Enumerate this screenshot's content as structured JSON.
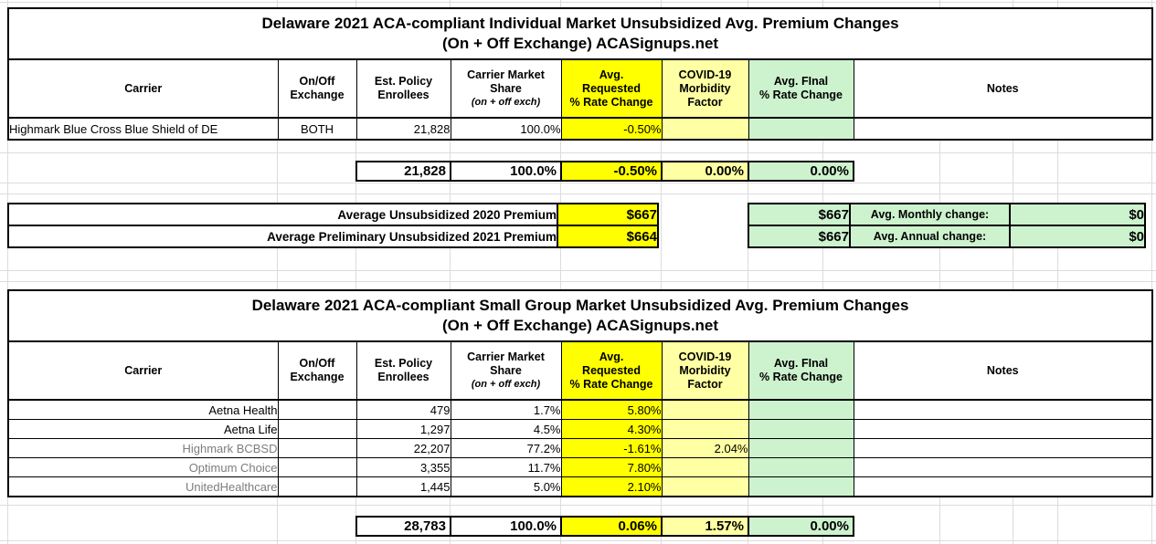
{
  "colors": {
    "requested_col_bg": "#ffff00",
    "covid_col_bg": "#ffffa3",
    "final_col_bg": "#cdf3ce",
    "gridline": "#dcdcdc",
    "muted_carrier_text": "#7d7d7d"
  },
  "columns": {
    "carrier": "Carrier",
    "exchange1": "On/Off",
    "exchange2": "Exchange",
    "enrollees1": "Est. Policy",
    "enrollees2": "Enrollees",
    "share1": "Carrier Market",
    "share2": "Share",
    "share3": "(on + off exch)",
    "requested1": "Avg.",
    "requested2": "Requested",
    "requested3": "% Rate Change",
    "covid1": "COVID-19",
    "covid2": "Morbidity",
    "covid3": "Factor",
    "final1": "Avg. FInal",
    "final2": "% Rate Change",
    "notes": "Notes"
  },
  "individual": {
    "title_line1": "Delaware 2021 ACA-compliant Individual Market Unsubsidized Avg. Premium Changes",
    "title_line2": "(On + Off Exchange) ACASignups.net",
    "rows": [
      {
        "carrier": "Highmark Blue Cross Blue Shield of DE",
        "exchange": "BOTH",
        "enrollees": "21,828",
        "share": "100.0%",
        "requested": "-0.50%",
        "covid": "",
        "final": "",
        "notes": ""
      }
    ],
    "totals": {
      "enrollees": "21,828",
      "share": "100.0%",
      "requested": "-0.50%",
      "covid": "0.00%",
      "final": "0.00%"
    }
  },
  "premium_summary": {
    "rows": [
      {
        "label": "Average Unsubsidized 2020 Premium",
        "value": "$667",
        "final_value": "$667",
        "change_label": "Avg. Monthly change:",
        "change_value": "$0"
      },
      {
        "label": "Average Preliminary Unsubsidized 2021 Premium",
        "value": "$664",
        "final_value": "$667",
        "change_label": "Avg. Annual change:",
        "change_value": "$0"
      }
    ]
  },
  "small_group": {
    "title_line1": "Delaware 2021 ACA-compliant Small Group Market Unsubsidized Avg. Premium Changes",
    "title_line2": "(On + Off Exchange) ACASignups.net",
    "rows": [
      {
        "carrier": "Aetna Health",
        "exchange": "",
        "enrollees": "479",
        "share": "1.7%",
        "requested": "5.80%",
        "covid": "",
        "final": "",
        "notes": ""
      },
      {
        "carrier": "Aetna Life",
        "exchange": "",
        "enrollees": "1,297",
        "share": "4.5%",
        "requested": "4.30%",
        "covid": "",
        "final": "",
        "notes": ""
      },
      {
        "carrier": "Highmark BCBSD",
        "exchange": "",
        "enrollees": "22,207",
        "share": "77.2%",
        "requested": "-1.61%",
        "covid": "2.04%",
        "final": "",
        "notes": ""
      },
      {
        "carrier": "Optimum Choice",
        "exchange": "",
        "enrollees": "3,355",
        "share": "11.7%",
        "requested": "7.80%",
        "covid": "",
        "final": "",
        "notes": ""
      },
      {
        "carrier": "UnitedHealthcare",
        "exchange": "",
        "enrollees": "1,445",
        "share": "5.0%",
        "requested": "2.10%",
        "covid": "",
        "final": "",
        "notes": ""
      }
    ],
    "totals": {
      "enrollees": "28,783",
      "share": "100.0%",
      "requested": "0.06%",
      "covid": "1.57%",
      "final": "0.00%"
    }
  }
}
